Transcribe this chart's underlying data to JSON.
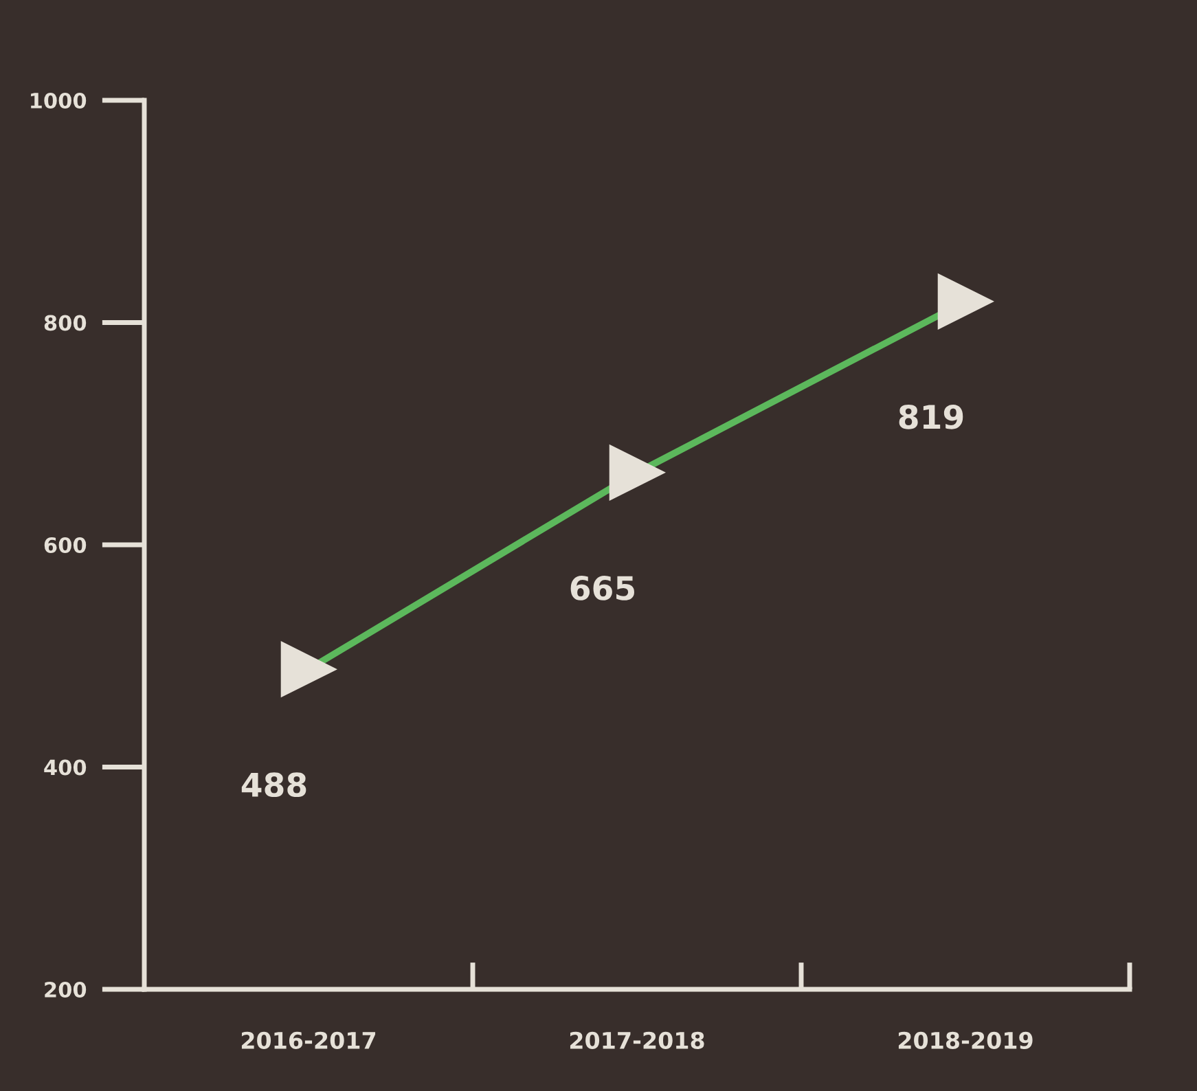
{
  "chart_data": {
    "type": "line",
    "categories": [
      "2016-2017",
      "2017-2018",
      "2018-2019"
    ],
    "series": [
      {
        "color": "#5cb85c",
        "values": [
          488,
          665,
          819
        ]
      }
    ],
    "ylim": [
      200,
      1000
    ],
    "yticks": [
      200,
      400,
      600,
      800,
      1000
    ],
    "marker": "triangle",
    "line_style": "solid",
    "data_labels": true,
    "grid": false,
    "legend": false
  }
}
